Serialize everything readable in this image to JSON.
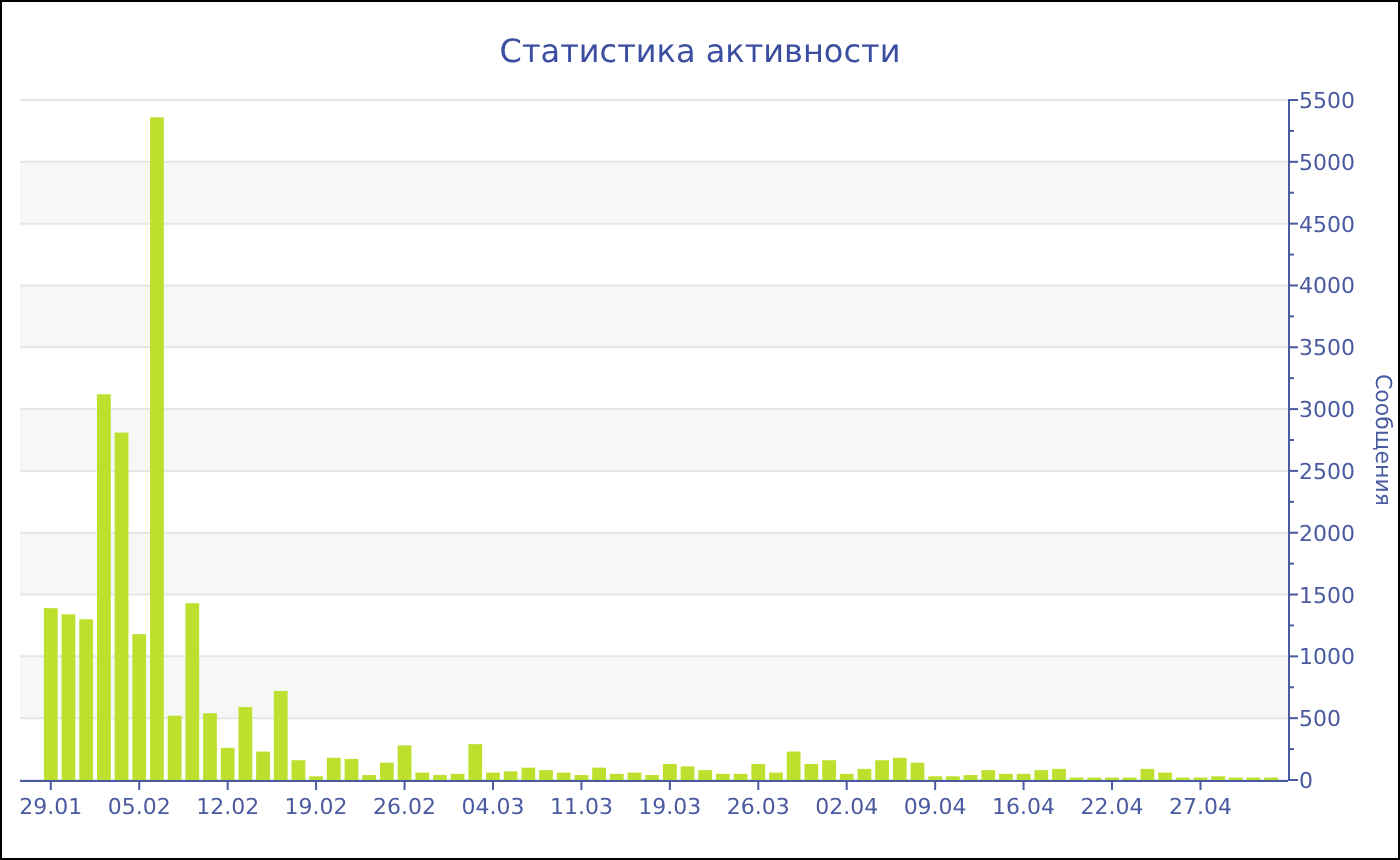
{
  "chart_data": {
    "type": "bar",
    "title": "Статистика активности",
    "ylabel": "Сообщения",
    "categories": [
      "29.01",
      null,
      null,
      null,
      null,
      "05.02",
      null,
      null,
      null,
      null,
      "12.02",
      null,
      null,
      null,
      null,
      "19.02",
      null,
      null,
      null,
      null,
      "26.02",
      null,
      null,
      null,
      null,
      "04.03",
      null,
      null,
      null,
      null,
      "11.03",
      null,
      null,
      null,
      null,
      "19.03",
      null,
      null,
      null,
      null,
      "26.03",
      null,
      null,
      null,
      null,
      "02.04",
      null,
      null,
      null,
      null,
      "09.04",
      null,
      null,
      null,
      null,
      "16.04",
      null,
      null,
      null,
      null,
      "22.04",
      null,
      null,
      null,
      null,
      "27.04",
      null,
      null,
      null,
      null
    ],
    "values": [
      1390,
      1340,
      1300,
      3120,
      2810,
      1180,
      5360,
      520,
      1430,
      540,
      260,
      590,
      230,
      720,
      160,
      30,
      180,
      170,
      40,
      140,
      280,
      60,
      40,
      50,
      290,
      60,
      70,
      100,
      80,
      60,
      40,
      100,
      50,
      60,
      40,
      130,
      110,
      80,
      50,
      50,
      130,
      60,
      230,
      130,
      160,
      50,
      90,
      160,
      180,
      140,
      30,
      30,
      40,
      80,
      50,
      50,
      80,
      90,
      20,
      20,
      20,
      20,
      90,
      60,
      20,
      20,
      30,
      20,
      20,
      20
    ],
    "color": "#bde02f",
    "ylim": [
      0,
      5500
    ],
    "yticks": [
      0,
      500,
      1000,
      1500,
      2000,
      2500,
      3000,
      3500,
      4000,
      4500,
      5000,
      5500
    ],
    "grid": "y"
  }
}
